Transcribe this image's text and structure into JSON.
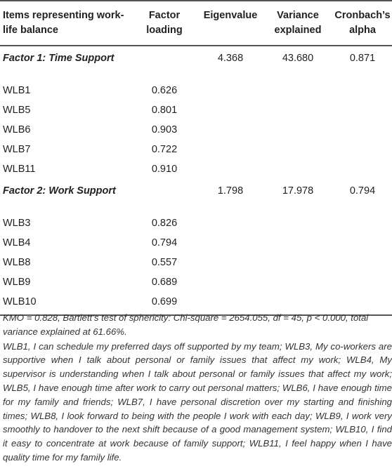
{
  "table": {
    "headers": {
      "items": "Items representing work-life balance",
      "loading": "Factor loading",
      "eigen": "Eigenvalue",
      "variance": "Variance explained",
      "alpha": "Cronbach’s alpha"
    },
    "factor1": {
      "label": "Factor 1: Time Support",
      "eigen": "4.368",
      "variance": "43.680",
      "alpha": "0.871",
      "rows": [
        {
          "item": "WLB1",
          "loading": "0.626"
        },
        {
          "item": "WLB5",
          "loading": "0.801"
        },
        {
          "item": "WLB6",
          "loading": "0.903"
        },
        {
          "item": "WLB7",
          "loading": "0.722"
        },
        {
          "item": "WLB11",
          "loading": "0.910"
        }
      ]
    },
    "factor2": {
      "label": "Factor 2: Work Support",
      "eigen": "1.798",
      "variance": "17.978",
      "alpha": "0.794",
      "rows": [
        {
          "item": "WLB3",
          "loading": "0.826"
        },
        {
          "item": "WLB4",
          "loading": "0.794"
        },
        {
          "item": "WLB8",
          "loading": "0.557"
        },
        {
          "item": "WLB9",
          "loading": "0.689"
        },
        {
          "item": "WLB10",
          "loading": "0.699"
        }
      ]
    }
  },
  "notes": {
    "kmo": "KMO = 0.828, Bartlett’s test of sphericity: Chi-square = 2654.055, df = 45, p < 0.000, total variance explained at 61.66%.",
    "items": "WLB1, I can schedule my preferred days off supported by my team; WLB3, My co-workers are supportive when I talk about personal or family issues that affect my work; WLB4, My supervisor is understanding when I talk about personal or family issues that affect my work; WLB5, I have enough time after work to carry out personal matters; WLB6, I have enough time for my family and friends; WLB7, I have personal discretion over my starting and finishing times; WLB8, I look forward to being with the people I work with each day; WLB9, I work very smoothly to handover to the next shift because of a good management system; WLB10, I find it easy to concentrate at work because of family support; WLB11, I feel happy when I have quality time for my family life."
  }
}
